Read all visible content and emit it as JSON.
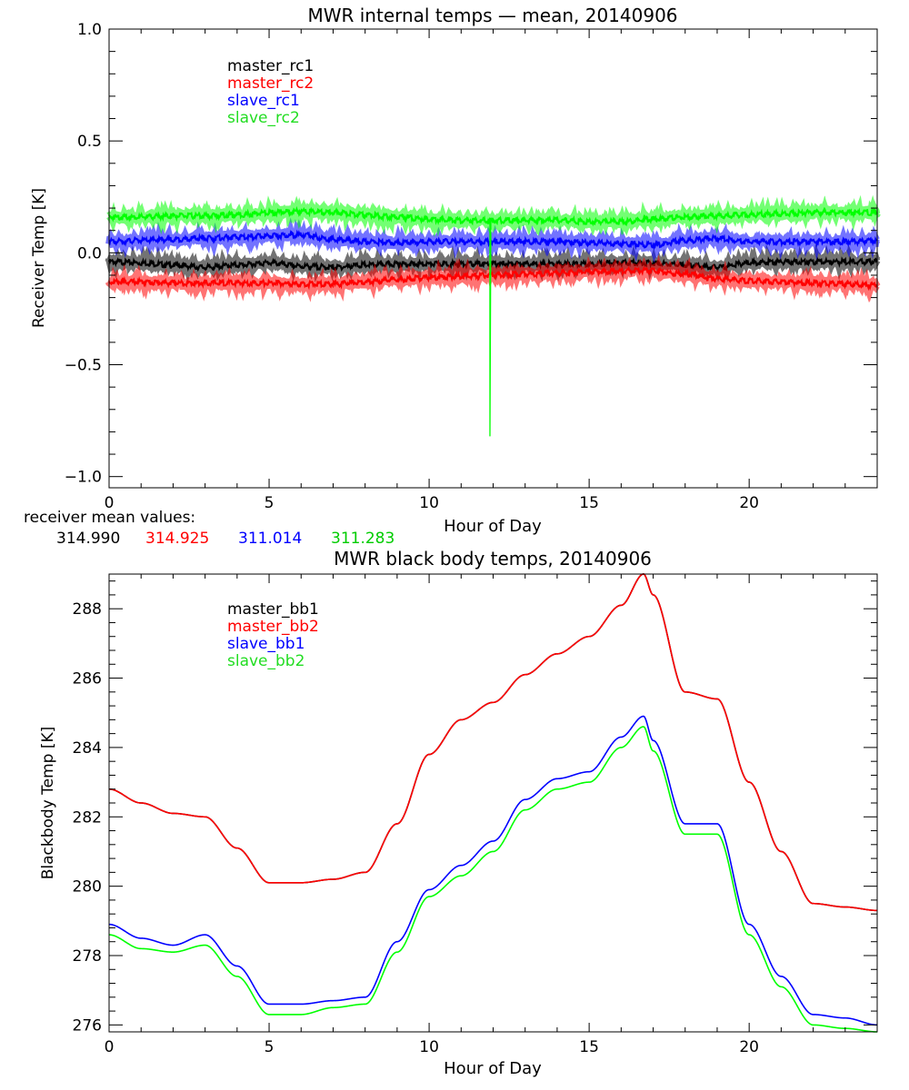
{
  "colors": {
    "black": "#000000",
    "red": "#ff0000",
    "blue": "#0000ff",
    "green": "#00ff00",
    "darkred": "#cc0000",
    "axis": "#000000"
  },
  "receiver_mean": {
    "label": "receiver mean values:",
    "values": [
      "314.990",
      "314.925",
      "311.014",
      "311.283"
    ]
  },
  "chart_data": [
    {
      "type": "line",
      "title": "MWR internal temps — mean, 20140906",
      "xlabel": "Hour of Day",
      "ylabel": "Receiver Temp [K]",
      "xlim": [
        0,
        24
      ],
      "ylim": [
        -1.05,
        1.0
      ],
      "xticks": [
        0,
        5,
        10,
        15,
        20
      ],
      "xtick_labels": [
        "0",
        "5",
        "10",
        "15",
        "20"
      ],
      "yticks": [
        -1.0,
        -0.5,
        0.0,
        0.5,
        1.0
      ],
      "ytick_labels": [
        "−1.0",
        "−0.5",
        "0.0",
        "0.5",
        "1.0"
      ],
      "legend_position": "top-left",
      "noise_band": 0.012,
      "series": [
        {
          "name": "master_rc1",
          "color": "#000000",
          "x": [
            0,
            1,
            2,
            3,
            4,
            5,
            6,
            7,
            8,
            9,
            10,
            11,
            12,
            13,
            14,
            15,
            16,
            17,
            18,
            19,
            20,
            21,
            22,
            23,
            24
          ],
          "y": [
            -0.04,
            -0.045,
            -0.055,
            -0.065,
            -0.055,
            -0.045,
            -0.06,
            -0.065,
            -0.055,
            -0.05,
            -0.05,
            -0.05,
            -0.05,
            -0.05,
            -0.05,
            -0.05,
            -0.045,
            -0.045,
            -0.055,
            -0.065,
            -0.045,
            -0.04,
            -0.04,
            -0.04,
            -0.04
          ]
        },
        {
          "name": "master_rc2",
          "color": "#ff0000",
          "x": [
            0,
            1,
            2,
            3,
            4,
            5,
            6,
            7,
            8,
            9,
            10,
            11,
            12,
            13,
            14,
            15,
            16,
            17,
            18,
            19,
            20,
            21,
            22,
            23,
            24
          ],
          "y": [
            -0.13,
            -0.13,
            -0.135,
            -0.135,
            -0.135,
            -0.135,
            -0.14,
            -0.14,
            -0.13,
            -0.12,
            -0.11,
            -0.105,
            -0.1,
            -0.095,
            -0.09,
            -0.085,
            -0.08,
            -0.08,
            -0.095,
            -0.115,
            -0.125,
            -0.13,
            -0.135,
            -0.14,
            -0.145
          ]
        },
        {
          "name": "slave_rc1",
          "color": "#0000ff",
          "x": [
            0,
            1,
            2,
            3,
            4,
            5,
            6,
            7,
            8,
            9,
            10,
            11,
            12,
            13,
            14,
            15,
            16,
            17,
            18,
            19,
            20,
            21,
            22,
            23,
            24
          ],
          "y": [
            0.05,
            0.055,
            0.06,
            0.065,
            0.07,
            0.075,
            0.08,
            0.06,
            0.05,
            0.045,
            0.05,
            0.05,
            0.05,
            0.05,
            0.05,
            0.045,
            0.04,
            0.035,
            0.055,
            0.065,
            0.05,
            0.05,
            0.05,
            0.05,
            0.055
          ]
        },
        {
          "name": "slave_rc2",
          "color": "#00ff00",
          "x": [
            0,
            1,
            2,
            3,
            4,
            5,
            6,
            7,
            8,
            9,
            10,
            11,
            12,
            13,
            14,
            15,
            16,
            17,
            18,
            19,
            20,
            21,
            22,
            23,
            24
          ],
          "y": [
            0.16,
            0.16,
            0.165,
            0.165,
            0.17,
            0.18,
            0.185,
            0.18,
            0.17,
            0.16,
            0.15,
            0.145,
            0.145,
            0.145,
            0.145,
            0.14,
            0.14,
            0.15,
            0.16,
            0.165,
            0.17,
            0.175,
            0.18,
            0.18,
            0.18
          ]
        }
      ],
      "annotations": [
        {
          "series": "slave_rc2",
          "type": "spike",
          "x": 11.9,
          "y": -0.82
        }
      ]
    },
    {
      "type": "line",
      "title": "MWR black body temps, 20140906",
      "xlabel": "Hour of Day",
      "ylabel": "Blackbody Temp [K]",
      "xlim": [
        0,
        24
      ],
      "ylim": [
        275.8,
        289.0
      ],
      "xticks": [
        0,
        5,
        10,
        15,
        20
      ],
      "xtick_labels": [
        "0",
        "5",
        "10",
        "15",
        "20"
      ],
      "yticks": [
        276,
        278,
        280,
        282,
        284,
        286,
        288
      ],
      "ytick_labels": [
        "276",
        "278",
        "280",
        "282",
        "284",
        "286",
        "288"
      ],
      "legend_position": "top-left",
      "series": [
        {
          "name": "master_bb1",
          "color": "#000000",
          "x": [
            0,
            1,
            2,
            3,
            4,
            5,
            6,
            7,
            8,
            9,
            10,
            11,
            12,
            13,
            14,
            15,
            16,
            16.7,
            17,
            18,
            19,
            20,
            21,
            22,
            23,
            24
          ],
          "y": [
            282.8,
            282.4,
            282.1,
            282.0,
            281.1,
            280.1,
            280.1,
            280.2,
            280.4,
            281.8,
            283.8,
            284.8,
            285.3,
            286.1,
            286.7,
            287.2,
            288.1,
            289.0,
            288.4,
            285.6,
            285.4,
            283.0,
            281.0,
            279.5,
            279.4,
            279.3
          ]
        },
        {
          "name": "master_bb2",
          "color": "#ff0000",
          "x": [
            0,
            1,
            2,
            3,
            4,
            5,
            6,
            7,
            8,
            9,
            10,
            11,
            12,
            13,
            14,
            15,
            16,
            16.7,
            17,
            18,
            19,
            20,
            21,
            22,
            23,
            24
          ],
          "y": [
            282.8,
            282.4,
            282.1,
            282.0,
            281.1,
            280.1,
            280.1,
            280.2,
            280.4,
            281.8,
            283.8,
            284.8,
            285.3,
            286.1,
            286.7,
            287.2,
            288.1,
            289.0,
            288.4,
            285.6,
            285.4,
            283.0,
            281.0,
            279.5,
            279.4,
            279.3
          ]
        },
        {
          "name": "slave_bb1",
          "color": "#0000ff",
          "x": [
            0,
            1,
            2,
            3,
            4,
            5,
            6,
            7,
            8,
            9,
            10,
            11,
            12,
            13,
            14,
            15,
            16,
            16.7,
            17,
            18,
            19,
            20,
            21,
            22,
            23,
            24
          ],
          "y": [
            278.9,
            278.5,
            278.3,
            278.6,
            277.7,
            276.6,
            276.6,
            276.7,
            276.8,
            278.4,
            279.9,
            280.6,
            281.3,
            282.5,
            283.1,
            283.3,
            284.3,
            284.9,
            284.2,
            281.8,
            281.8,
            278.9,
            277.4,
            276.3,
            276.2,
            276.0
          ]
        },
        {
          "name": "slave_bb2",
          "color": "#00ff00",
          "x": [
            0,
            1,
            2,
            3,
            4,
            5,
            6,
            7,
            8,
            9,
            10,
            11,
            12,
            13,
            14,
            15,
            16,
            16.7,
            17,
            18,
            19,
            20,
            21,
            22,
            23,
            24
          ],
          "y": [
            278.6,
            278.2,
            278.1,
            278.3,
            277.4,
            276.3,
            276.3,
            276.5,
            276.6,
            278.1,
            279.7,
            280.3,
            281.0,
            282.2,
            282.8,
            283.0,
            284.0,
            284.6,
            283.9,
            281.5,
            281.5,
            278.6,
            277.1,
            276.0,
            275.9,
            275.8
          ]
        }
      ]
    }
  ]
}
